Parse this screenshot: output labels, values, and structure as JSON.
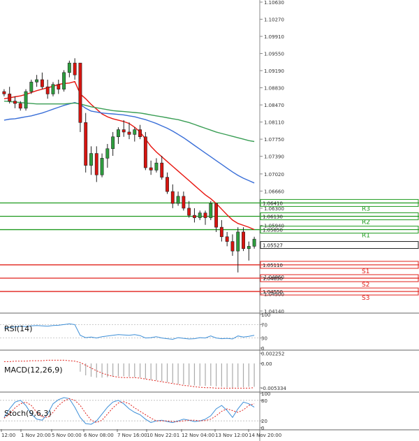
{
  "chart_data": {
    "type": "candlestick",
    "price_axis": {
      "min": 1.0414,
      "max": 1.1063,
      "ticks": [
        "1.10630",
        "1.10270",
        "1.09910",
        "1.09550",
        "1.09190",
        "1.08830",
        "1.08470",
        "1.08110",
        "1.07750",
        "1.07390",
        "1.07020",
        "1.06660",
        "1.06300",
        "1.05940",
        "1.05580",
        "1.04860",
        "1.04500",
        "1.04140"
      ]
    },
    "x_labels": [
      "12:00",
      "1 Nov 20:00",
      "5 Nov 00:00",
      "6 Nov 08:00",
      "7 Nov 16:00",
      "10 Nov 22:01",
      "12 Nov 04:00",
      "13 Nov 12:00",
      "14 Nov 20:00"
    ],
    "last_price": "1.05527",
    "candles": [
      [
        1.0875,
        1.088,
        1.0865,
        1.087
      ],
      [
        1.087,
        1.0885,
        1.085,
        1.0855
      ],
      [
        1.0855,
        1.0865,
        1.084,
        1.085
      ],
      [
        1.085,
        1.0855,
        1.0835,
        1.084
      ],
      [
        1.084,
        1.088,
        1.0835,
        1.0875
      ],
      [
        1.0875,
        1.09,
        1.087,
        1.0895
      ],
      [
        1.0895,
        1.091,
        1.0885,
        1.09
      ],
      [
        1.09,
        1.0915,
        1.088,
        1.0885
      ],
      [
        1.0885,
        1.09,
        1.086,
        1.087
      ],
      [
        1.087,
        1.0895,
        1.0865,
        1.089
      ],
      [
        1.089,
        1.09,
        1.087,
        1.088
      ],
      [
        1.088,
        1.092,
        1.0875,
        1.0915
      ],
      [
        1.0915,
        1.094,
        1.0905,
        1.0935
      ],
      [
        1.0935,
        1.0945,
        1.09,
        1.091
      ],
      [
        1.0935,
        1.0935,
        1.079,
        1.081
      ],
      [
        1.081,
        1.083,
        1.0705,
        1.072
      ],
      [
        1.072,
        1.076,
        1.07,
        1.0745
      ],
      [
        1.0745,
        1.076,
        1.0685,
        1.07
      ],
      [
        1.07,
        1.0745,
        1.0695,
        1.0735
      ],
      [
        1.0735,
        1.0765,
        1.0715,
        1.0755
      ],
      [
        1.0755,
        1.079,
        1.074,
        1.078
      ],
      [
        1.078,
        1.08,
        1.0765,
        1.0795
      ],
      [
        1.0795,
        1.0815,
        1.078,
        1.079
      ],
      [
        1.079,
        1.081,
        1.0775,
        1.0785
      ],
      [
        1.0785,
        1.08,
        1.077,
        1.0795
      ],
      [
        1.0795,
        1.0805,
        1.0775,
        1.078
      ],
      [
        1.078,
        1.079,
        1.071,
        1.0715
      ],
      [
        1.0715,
        1.073,
        1.07,
        1.071
      ],
      [
        1.071,
        1.0735,
        1.0705,
        1.0725
      ],
      [
        1.0725,
        1.074,
        1.069,
        1.0695
      ],
      [
        1.0695,
        1.0705,
        1.066,
        1.0665
      ],
      [
        1.0665,
        1.068,
        1.063,
        1.064
      ],
      [
        1.064,
        1.0665,
        1.0635,
        1.0655
      ],
      [
        1.0655,
        1.0665,
        1.0625,
        1.063
      ],
      [
        1.063,
        1.0645,
        1.061,
        1.0615
      ],
      [
        1.0615,
        1.063,
        1.06,
        1.061
      ],
      [
        1.061,
        1.0625,
        1.0605,
        1.062
      ],
      [
        1.062,
        1.0625,
        1.0595,
        1.061
      ],
      [
        1.061,
        1.0645,
        1.0605,
        1.064
      ],
      [
        1.064,
        1.064,
        1.058,
        1.059
      ],
      [
        1.059,
        1.0605,
        1.056,
        1.057
      ],
      [
        1.057,
        1.058,
        1.055,
        1.056
      ],
      [
        1.056,
        1.0575,
        1.053,
        1.054
      ],
      [
        1.054,
        1.059,
        1.0495,
        1.058
      ],
      [
        1.058,
        1.059,
        1.054,
        1.0545
      ],
      [
        1.0545,
        1.056,
        1.052,
        1.055
      ],
      [
        1.055,
        1.057,
        1.0545,
        1.0565
      ]
    ],
    "moving_averages": [
      {
        "color": "#e8150f",
        "values": [
          1.086,
          1.0862,
          1.0864,
          1.0866,
          1.0869,
          1.0873,
          1.0877,
          1.088,
          1.0883,
          1.0886,
          1.089,
          1.0892,
          1.0893,
          1.0896,
          1.087,
          1.086,
          1.0848,
          1.0838,
          1.0828,
          1.0822,
          1.0818,
          1.0815,
          1.0812,
          1.0808,
          1.08,
          1.079,
          1.0775,
          1.076,
          1.0748,
          1.0738,
          1.0728,
          1.0718,
          1.0708,
          1.0698,
          1.0688,
          1.0678,
          1.0668,
          1.0658,
          1.065,
          1.064,
          1.0628,
          1.0616,
          1.0605,
          1.0598,
          1.0594,
          1.059,
          1.0585
        ]
      },
      {
        "color": "#3a6fd8",
        "values": [
          1.0815,
          1.0817,
          1.0818,
          1.082,
          1.0822,
          1.0824,
          1.0827,
          1.083,
          1.0834,
          1.0838,
          1.0842,
          1.0846,
          1.0849,
          1.0852,
          1.0848,
          1.084,
          1.0834,
          1.0832,
          1.083,
          1.0829,
          1.0828,
          1.0827,
          1.0826,
          1.0824,
          1.0822,
          1.0819,
          1.0816,
          1.0812,
          1.0808,
          1.0803,
          1.0798,
          1.0792,
          1.0785,
          1.0778,
          1.077,
          1.0762,
          1.0754,
          1.0746,
          1.0738,
          1.073,
          1.0722,
          1.0714,
          1.0706,
          1.0699,
          1.0693,
          1.0688,
          1.0683
        ]
      },
      {
        "color": "#3a9e55",
        "values": [
          1.0855,
          1.0854,
          1.0853,
          1.0852,
          1.0851,
          1.085,
          1.0849,
          1.0849,
          1.0849,
          1.0849,
          1.0849,
          1.0849,
          1.085,
          1.0851,
          1.0849,
          1.0846,
          1.0843,
          1.0841,
          1.0839,
          1.0837,
          1.0835,
          1.0834,
          1.0833,
          1.0832,
          1.0831,
          1.083,
          1.0828,
          1.0826,
          1.0824,
          1.0822,
          1.082,
          1.0818,
          1.0816,
          1.0813,
          1.081,
          1.0806,
          1.0802,
          1.0798,
          1.0794,
          1.079,
          1.0787,
          1.0784,
          1.0781,
          1.0778,
          1.0775,
          1.0772,
          1.077
        ]
      }
    ],
    "levels": [
      {
        "name": "R3",
        "value": "1.06410",
        "price": 1.0641,
        "color": "#1f9a1f"
      },
      {
        "name": "R2",
        "value": "1.06130",
        "price": 1.0613,
        "color": "#1f9a1f"
      },
      {
        "name": "R1",
        "value": "1.05850",
        "price": 1.0585,
        "color": "#1f9a1f"
      },
      {
        "name": "S1",
        "value": "1.05110",
        "price": 1.0511,
        "color": "#e0201a"
      },
      {
        "name": "S2",
        "value": "1.04830",
        "price": 1.0483,
        "color": "#e0201a"
      },
      {
        "name": "S3",
        "value": "1.04550",
        "price": 1.0455,
        "color": "#e0201a"
      }
    ],
    "indicators": [
      {
        "name": "RSI(14)",
        "ticks": [
          "100",
          "70",
          "30",
          "0"
        ],
        "range": [
          0,
          100
        ],
        "levels": [
          70,
          30
        ],
        "color": "#3d8fd8",
        "values": [
          60,
          62,
          63,
          65,
          64,
          66,
          67,
          66,
          65,
          67,
          68,
          70,
          72,
          70,
          38,
          31,
          33,
          30,
          34,
          36,
          38,
          40,
          39,
          38,
          40,
          37,
          30,
          31,
          34,
          30,
          28,
          26,
          31,
          29,
          27,
          28,
          31,
          30,
          36,
          30,
          28,
          29,
          27,
          36,
          33,
          35,
          38
        ]
      },
      {
        "name": "MACD(12,26,9)",
        "ticks": [
          "0.002252",
          "0.00",
          "-0.005334"
        ],
        "range": [
          -0.0058,
          0.0026
        ],
        "color": "#e0201a",
        "hist": [
          0,
          0,
          0,
          0,
          0,
          0,
          0,
          0,
          0,
          0,
          0,
          0,
          0,
          0,
          -0.0018,
          -0.0026,
          -0.0029,
          -0.0031,
          -0.0031,
          -0.003,
          -0.0029,
          -0.0028,
          -0.0028,
          -0.0029,
          -0.003,
          -0.0031,
          -0.0034,
          -0.0036,
          -0.0037,
          -0.0039,
          -0.0041,
          -0.0043,
          -0.0045,
          -0.0046,
          -0.0047,
          -0.0048,
          -0.0049,
          -0.0049,
          -0.0049,
          -0.005,
          -0.0051,
          -0.0052,
          -0.0053,
          -0.0052,
          -0.0052,
          -0.0051,
          -0.0051
        ],
        "signal": [
          0.0004,
          0.0004,
          0.0005,
          0.0005,
          0.0005,
          0.0006,
          0.0006,
          0.0006,
          0.0007,
          0.0007,
          0.0007,
          0.0007,
          0.0006,
          0.0005,
          0.0002,
          -0.0004,
          -0.001,
          -0.0016,
          -0.0021,
          -0.0025,
          -0.0028,
          -0.003,
          -0.0031,
          -0.0031,
          -0.0031,
          -0.0032,
          -0.0034,
          -0.0036,
          -0.0038,
          -0.004,
          -0.0042,
          -0.0044,
          -0.0046,
          -0.0048,
          -0.0049,
          -0.0051,
          -0.0052,
          -0.0053,
          -0.0053,
          -0.0054,
          -0.0054,
          -0.0054,
          -0.0054,
          -0.0054,
          -0.0054,
          -0.0054,
          -0.0053
        ]
      },
      {
        "name": "Stoch(9,6,3)",
        "ticks": [
          "100",
          "80",
          "20",
          "0"
        ],
        "range": [
          0,
          100
        ],
        "levels": [
          80,
          20
        ],
        "color_k": "#3d8fd8",
        "color_d": "#e0201a",
        "k": [
          30,
          55,
          75,
          80,
          65,
          40,
          25,
          22,
          40,
          70,
          82,
          88,
          85,
          60,
          30,
          12,
          10,
          20,
          40,
          60,
          75,
          80,
          70,
          55,
          45,
          38,
          25,
          15,
          20,
          22,
          18,
          15,
          20,
          25,
          22,
          18,
          20,
          25,
          35,
          55,
          65,
          50,
          30,
          55,
          75,
          70,
          60
        ],
        "d": [
          28,
          40,
          58,
          70,
          75,
          65,
          45,
          32,
          30,
          45,
          65,
          78,
          85,
          80,
          65,
          42,
          22,
          15,
          22,
          40,
          58,
          72,
          76,
          70,
          58,
          48,
          38,
          28,
          20,
          20,
          20,
          18,
          18,
          20,
          22,
          22,
          20,
          21,
          25,
          35,
          48,
          55,
          50,
          45,
          52,
          65,
          70
        ]
      }
    ]
  }
}
